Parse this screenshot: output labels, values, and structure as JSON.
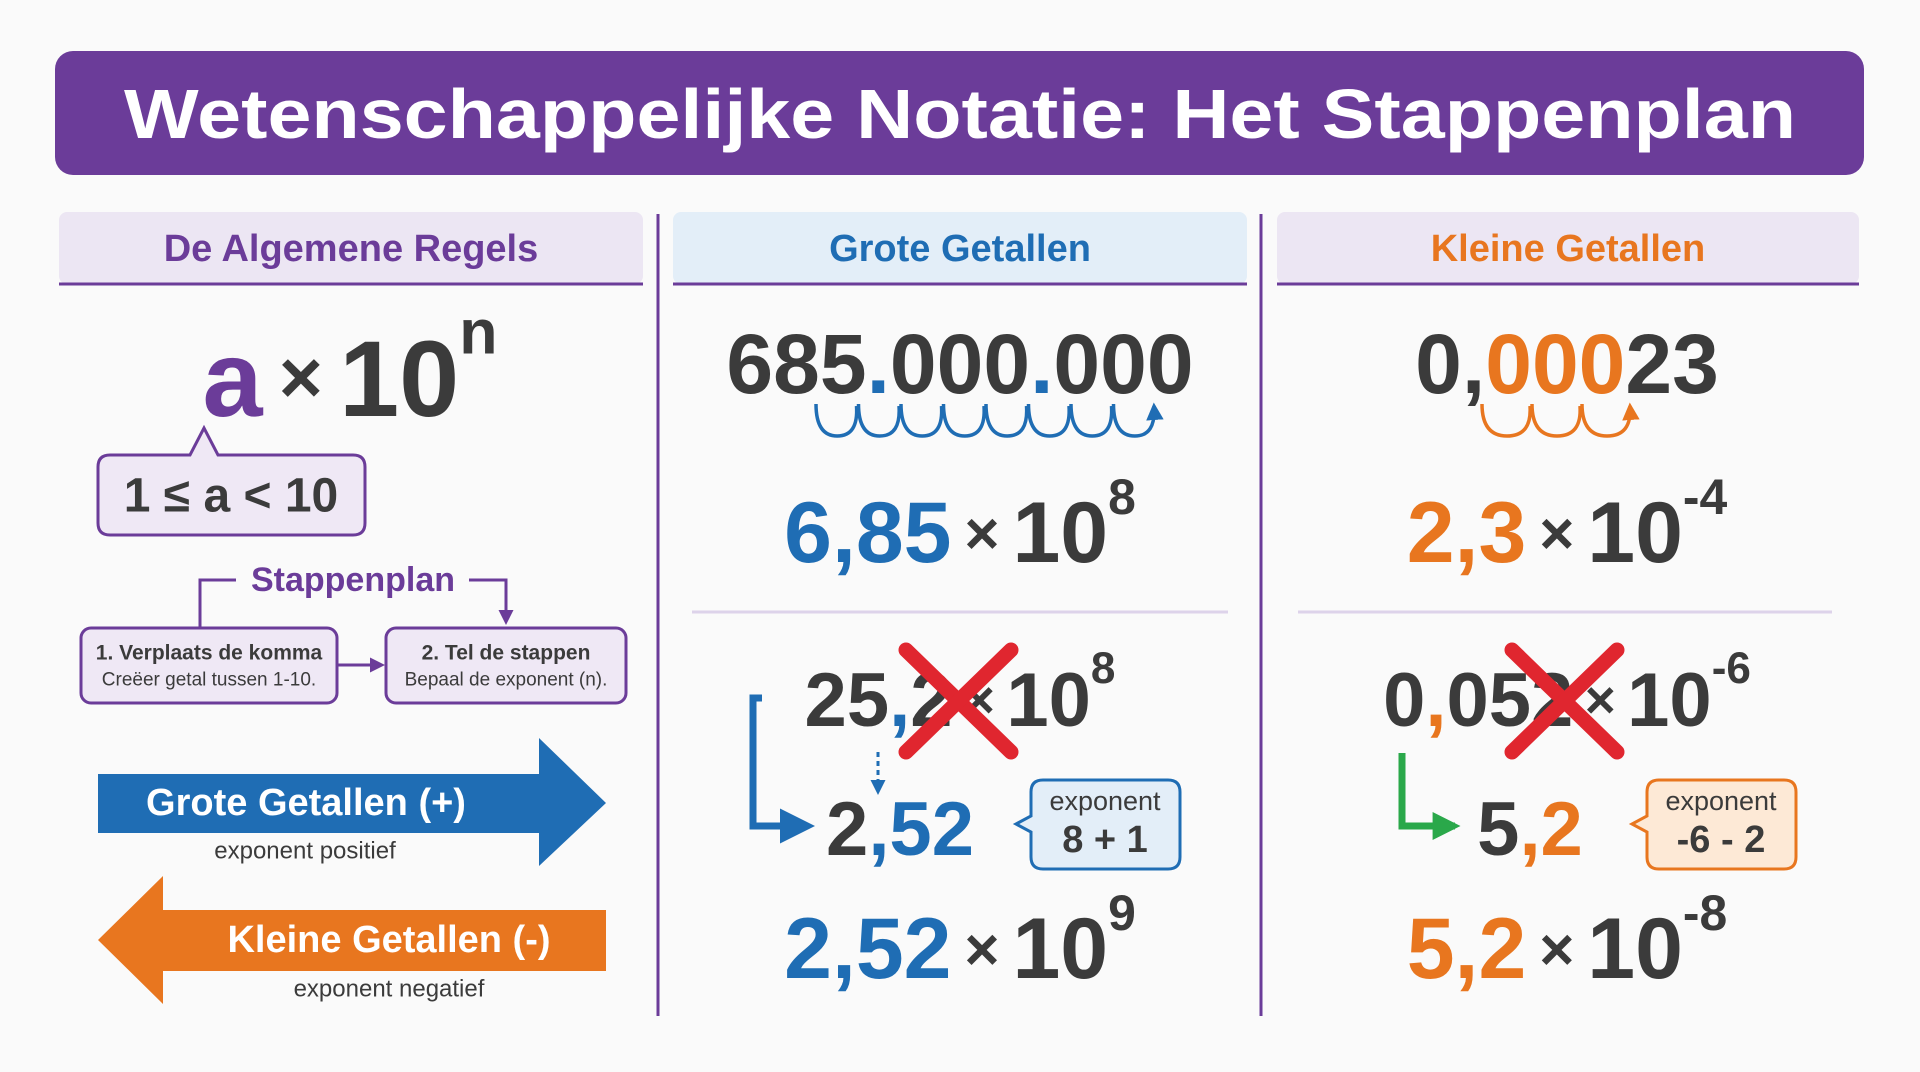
{
  "title": "Wetenschappelijke Notatie: Het Stappenplan",
  "rules": {
    "heading": "De Algemene Regels",
    "formula": {
      "mantissa": [
        "a"
      ],
      "times": "×",
      "base": "10",
      "exp": "n"
    },
    "condition": "1 ≤ a < 10",
    "plan": {
      "label": "Stappenplan",
      "steps": [
        {
          "title": "1. Verplaats de komma",
          "text": "Creëer getal tussen 1-10."
        },
        {
          "title": "2. Tel de stappen",
          "text": "Bepaal de exponent (n)."
        }
      ]
    },
    "arrows": [
      {
        "label": "Grote Getallen (+)",
        "note": "exponent positief"
      },
      {
        "label": "Kleine Getallen (-)",
        "note": "exponent negatief"
      }
    ]
  },
  "large": {
    "heading": "Grote Getallen",
    "number": [
      "685",
      ".",
      "000",
      ".",
      "000"
    ],
    "result": {
      "mantissa": [
        "6,85"
      ],
      "times": "×",
      "base": "10",
      "exp": "8"
    },
    "wrong": {
      "mantissa": [
        "25",
        ",",
        "2"
      ],
      "times": "×",
      "base": "10",
      "exp": "8"
    },
    "fixed": [
      "2",
      ",52"
    ],
    "note": {
      "label": "exponent",
      "calc": "8 + 1"
    },
    "final": {
      "mantissa": [
        "2,52"
      ],
      "times": "×",
      "base": "10",
      "exp": "9"
    }
  },
  "small": {
    "heading": "Kleine Getallen",
    "number": [
      "0,",
      "000",
      "23"
    ],
    "result": {
      "mantissa": [
        "2,3"
      ],
      "times": "×",
      "base": "10",
      "exp": "-4"
    },
    "wrong": {
      "mantissa": [
        "0",
        ",",
        "052"
      ],
      "times": "×",
      "base": "10",
      "exp": "-6"
    },
    "fixed": [
      "5",
      ",2"
    ],
    "note": {
      "label": "exponent",
      "calc": "-6 - 2"
    },
    "final": {
      "mantissa": [
        "5,2"
      ],
      "times": "×",
      "base": "10",
      "exp": "-8"
    }
  }
}
